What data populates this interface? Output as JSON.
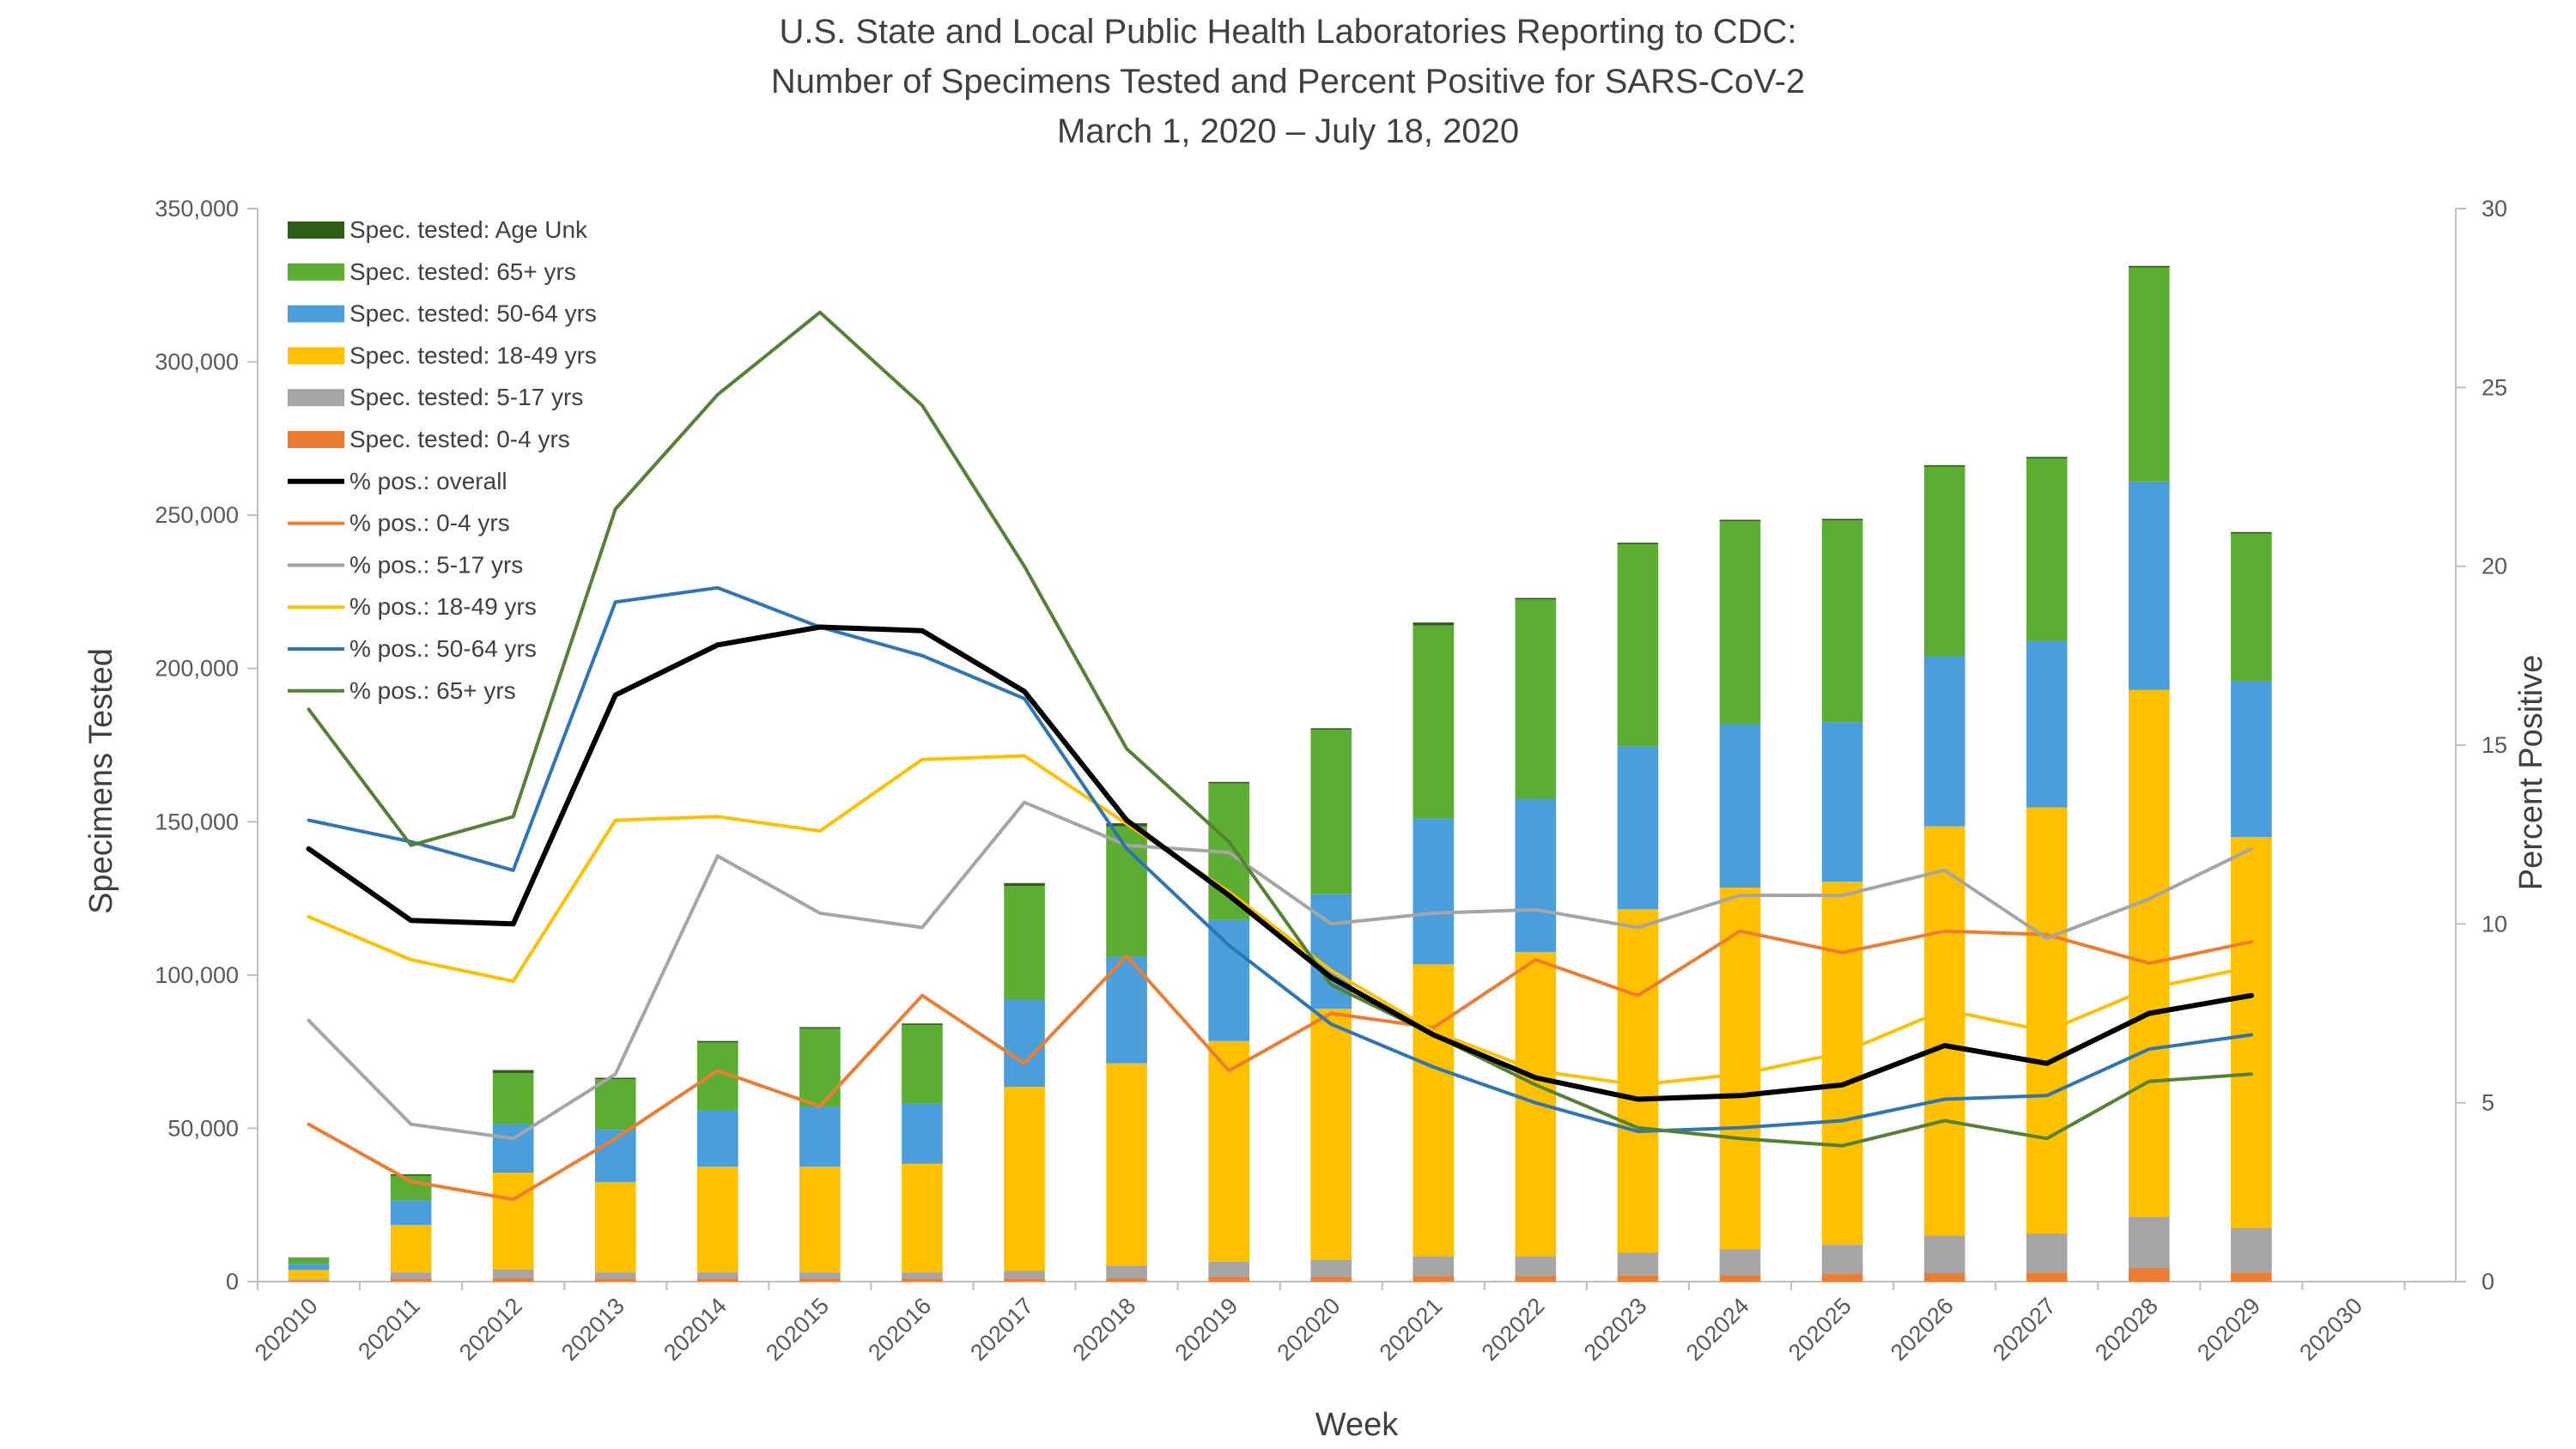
{
  "chart_data": {
    "type": "bar+line",
    "title": [
      "U.S. State and Local Public Health Laboratories Reporting to CDC:",
      "Number of Specimens Tested and Percent Positive for SARS-CoV-2",
      "March 1, 2020 – July 18, 2020"
    ],
    "xlabel": "Week",
    "ylabel": "Specimens Tested",
    "y2label": "Percent Positive",
    "categories": [
      "202010",
      "202011",
      "202012",
      "202013",
      "202014",
      "202015",
      "202016",
      "202017",
      "202018",
      "202019",
      "202020",
      "202021",
      "202022",
      "202023",
      "202024",
      "202025",
      "202026",
      "202027",
      "202028",
      "202029",
      "202030"
    ],
    "ylim": [
      0,
      350000
    ],
    "yticks": [
      0,
      50000,
      100000,
      150000,
      200000,
      250000,
      300000,
      350000
    ],
    "yticklabels": [
      "0",
      "50,000",
      "100,000",
      "150,000",
      "200,000",
      "250,000",
      "300,000",
      "350,000"
    ],
    "y2lim": [
      0,
      30
    ],
    "y2ticks": [
      0,
      5,
      10,
      15,
      20,
      25,
      30
    ],
    "y2ticklabels": [
      "0",
      "5",
      "10",
      "15",
      "20",
      "25",
      "30"
    ],
    "bar_series": [
      {
        "name": "Spec. tested: 0-4 yrs",
        "color": "#ED7D31",
        "values": [
          300,
          1000,
          1200,
          1000,
          1000,
          1000,
          1000,
          1000,
          1200,
          1500,
          1500,
          1800,
          1800,
          2000,
          2200,
          2500,
          2800,
          3000,
          4500,
          3000,
          null
        ]
      },
      {
        "name": "Spec. tested: 5-17 yrs",
        "color": "#A5A5A5",
        "values": [
          500,
          2000,
          2800,
          2000,
          2000,
          2000,
          2000,
          2500,
          4000,
          5000,
          5500,
          6500,
          6500,
          7500,
          8300,
          9500,
          12200,
          12700,
          16500,
          14500,
          null
        ]
      },
      {
        "name": "Spec. tested: 18-49 yrs",
        "color": "#FFC000",
        "values": [
          3000,
          15500,
          31500,
          29500,
          34500,
          34500,
          35500,
          60000,
          66000,
          72000,
          82000,
          95200,
          99200,
          112000,
          118000,
          118500,
          133500,
          139000,
          172000,
          127500,
          null
        ]
      },
      {
        "name": "Spec. tested: 50-64 yrs",
        "color": "#4A9EDC",
        "values": [
          2000,
          8000,
          16000,
          17000,
          18500,
          19500,
          19500,
          28500,
          34800,
          39500,
          37500,
          47500,
          50000,
          53000,
          53500,
          52000,
          55500,
          54300,
          68000,
          51000,
          null
        ]
      },
      {
        "name": "Spec. tested: 65+ yrs",
        "color": "#5CAE32",
        "values": [
          2000,
          8000,
          16500,
          16500,
          22000,
          25500,
          25700,
          37000,
          42500,
          44500,
          53500,
          63000,
          65000,
          66000,
          66000,
          65800,
          61800,
          59500,
          69800,
          48000,
          null
        ]
      },
      {
        "name": "Spec. tested: Age Unk",
        "color": "#2D5F18",
        "values": [
          100,
          500,
          1000,
          500,
          500,
          500,
          500,
          1000,
          1000,
          500,
          500,
          1000,
          500,
          500,
          500,
          500,
          500,
          500,
          500,
          500,
          null
        ]
      }
    ],
    "line_series": [
      {
        "name": "% pos.: overall",
        "color": "#000000",
        "width": 3,
        "values": [
          12.1,
          10.1,
          10.0,
          16.4,
          17.8,
          18.3,
          18.2,
          16.5,
          12.9,
          10.8,
          8.5,
          6.9,
          5.7,
          5.1,
          5.2,
          5.5,
          6.6,
          6.1,
          7.5,
          8.0,
          null
        ]
      },
      {
        "name": "% pos.: 0-4 yrs",
        "color": "#ED7D31",
        "width": 2,
        "values": [
          4.4,
          2.8,
          2.3,
          4.0,
          5.9,
          4.9,
          8.0,
          6.1,
          9.1,
          5.9,
          7.5,
          7.1,
          9.0,
          8.0,
          9.8,
          9.2,
          9.8,
          9.7,
          8.9,
          9.5,
          null
        ]
      },
      {
        "name": "% pos.: 5-17 yrs",
        "color": "#A5A5A5",
        "width": 2,
        "values": [
          7.3,
          4.4,
          4.0,
          5.8,
          11.9,
          10.3,
          9.9,
          13.4,
          12.2,
          12.0,
          10.0,
          10.3,
          10.4,
          9.9,
          10.8,
          10.8,
          11.5,
          9.6,
          10.7,
          12.1,
          null
        ]
      },
      {
        "name": "% pos.: 18-49 yrs",
        "color": "#FFC000",
        "width": 2,
        "values": [
          10.2,
          9.0,
          8.4,
          12.9,
          13.0,
          12.6,
          14.6,
          14.7,
          12.8,
          10.9,
          8.7,
          7.0,
          5.9,
          5.5,
          5.8,
          6.4,
          7.6,
          7.0,
          8.2,
          8.8,
          null
        ]
      },
      {
        "name": "% pos.: 50-64 yrs",
        "color": "#2E75B6",
        "width": 2,
        "values": [
          12.9,
          12.3,
          11.5,
          19.0,
          19.4,
          18.3,
          17.5,
          16.3,
          12.1,
          9.4,
          7.2,
          6.0,
          5.0,
          4.2,
          4.3,
          4.5,
          5.1,
          5.2,
          6.5,
          6.9,
          null
        ]
      },
      {
        "name": "% pos.: 65+ yrs",
        "color": "#548235",
        "width": 2,
        "values": [
          16.0,
          12.2,
          13.0,
          21.6,
          24.8,
          27.1,
          24.5,
          20.0,
          14.9,
          12.3,
          8.3,
          6.9,
          5.5,
          4.3,
          4.0,
          3.8,
          4.5,
          4.0,
          5.6,
          5.8,
          null
        ]
      }
    ],
    "legend_position": "top-left"
  }
}
